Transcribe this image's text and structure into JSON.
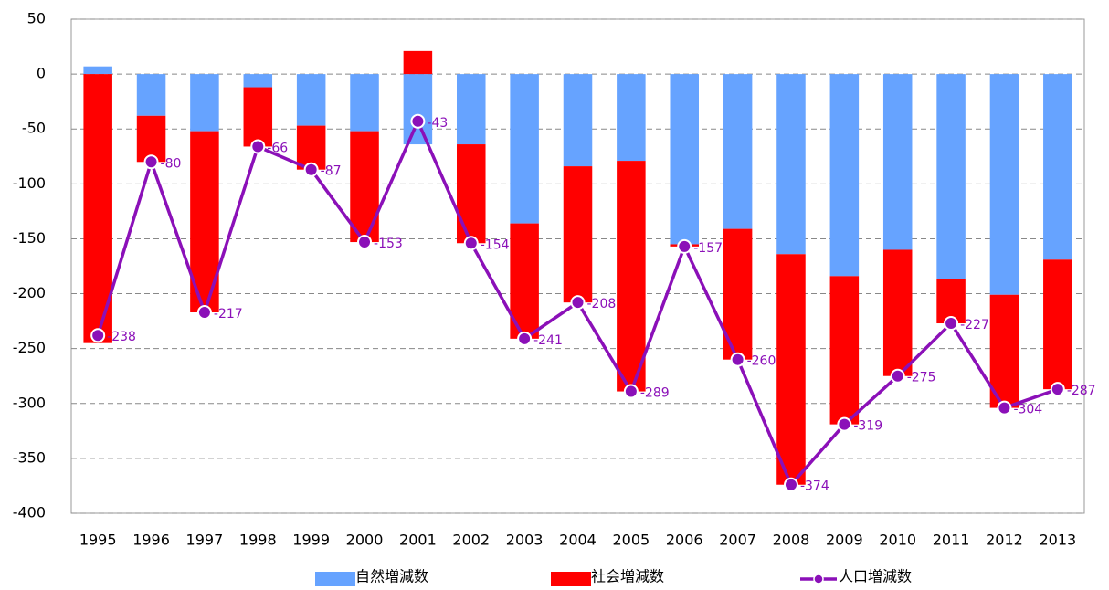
{
  "chart_data": {
    "type": "bar",
    "categories": [
      "1995",
      "1996",
      "1997",
      "1998",
      "1999",
      "2000",
      "2001",
      "2002",
      "2003",
      "2004",
      "2005",
      "2006",
      "2007",
      "2008",
      "2009",
      "2010",
      "2011",
      "2012",
      "2013"
    ],
    "series": [
      {
        "name": "自然増減数",
        "type": "bar",
        "color": "#66a3ff",
        "values": [
          7,
          -38,
          -52,
          -12,
          -47,
          -52,
          -64,
          -64,
          -136,
          -84,
          -79,
          -155,
          -141,
          -164,
          -184,
          -160,
          -187,
          -201,
          -169
        ]
      },
      {
        "name": "社会増減数",
        "type": "bar",
        "color": "#ff0000",
        "values": [
          -245,
          -42,
          -165,
          -54,
          -40,
          -101,
          21,
          -90,
          -105,
          -124,
          -210,
          -2,
          -119,
          -210,
          -135,
          -115,
          -40,
          -103,
          -118
        ]
      },
      {
        "name": "人口増減数",
        "type": "line",
        "color": "#8b10b8",
        "values": [
          -238,
          -80,
          -217,
          -66,
          -87,
          -153,
          -43,
          -154,
          -241,
          -208,
          -289,
          -157,
          -260,
          -374,
          -319,
          -275,
          -227,
          -304,
          -287
        ]
      }
    ],
    "ylim": [
      -400,
      50
    ],
    "yticks": [
      50,
      0,
      -50,
      -100,
      -150,
      -200,
      -250,
      -300,
      -350,
      -400
    ],
    "grid": true,
    "stacked": true,
    "legend": "bottom"
  }
}
